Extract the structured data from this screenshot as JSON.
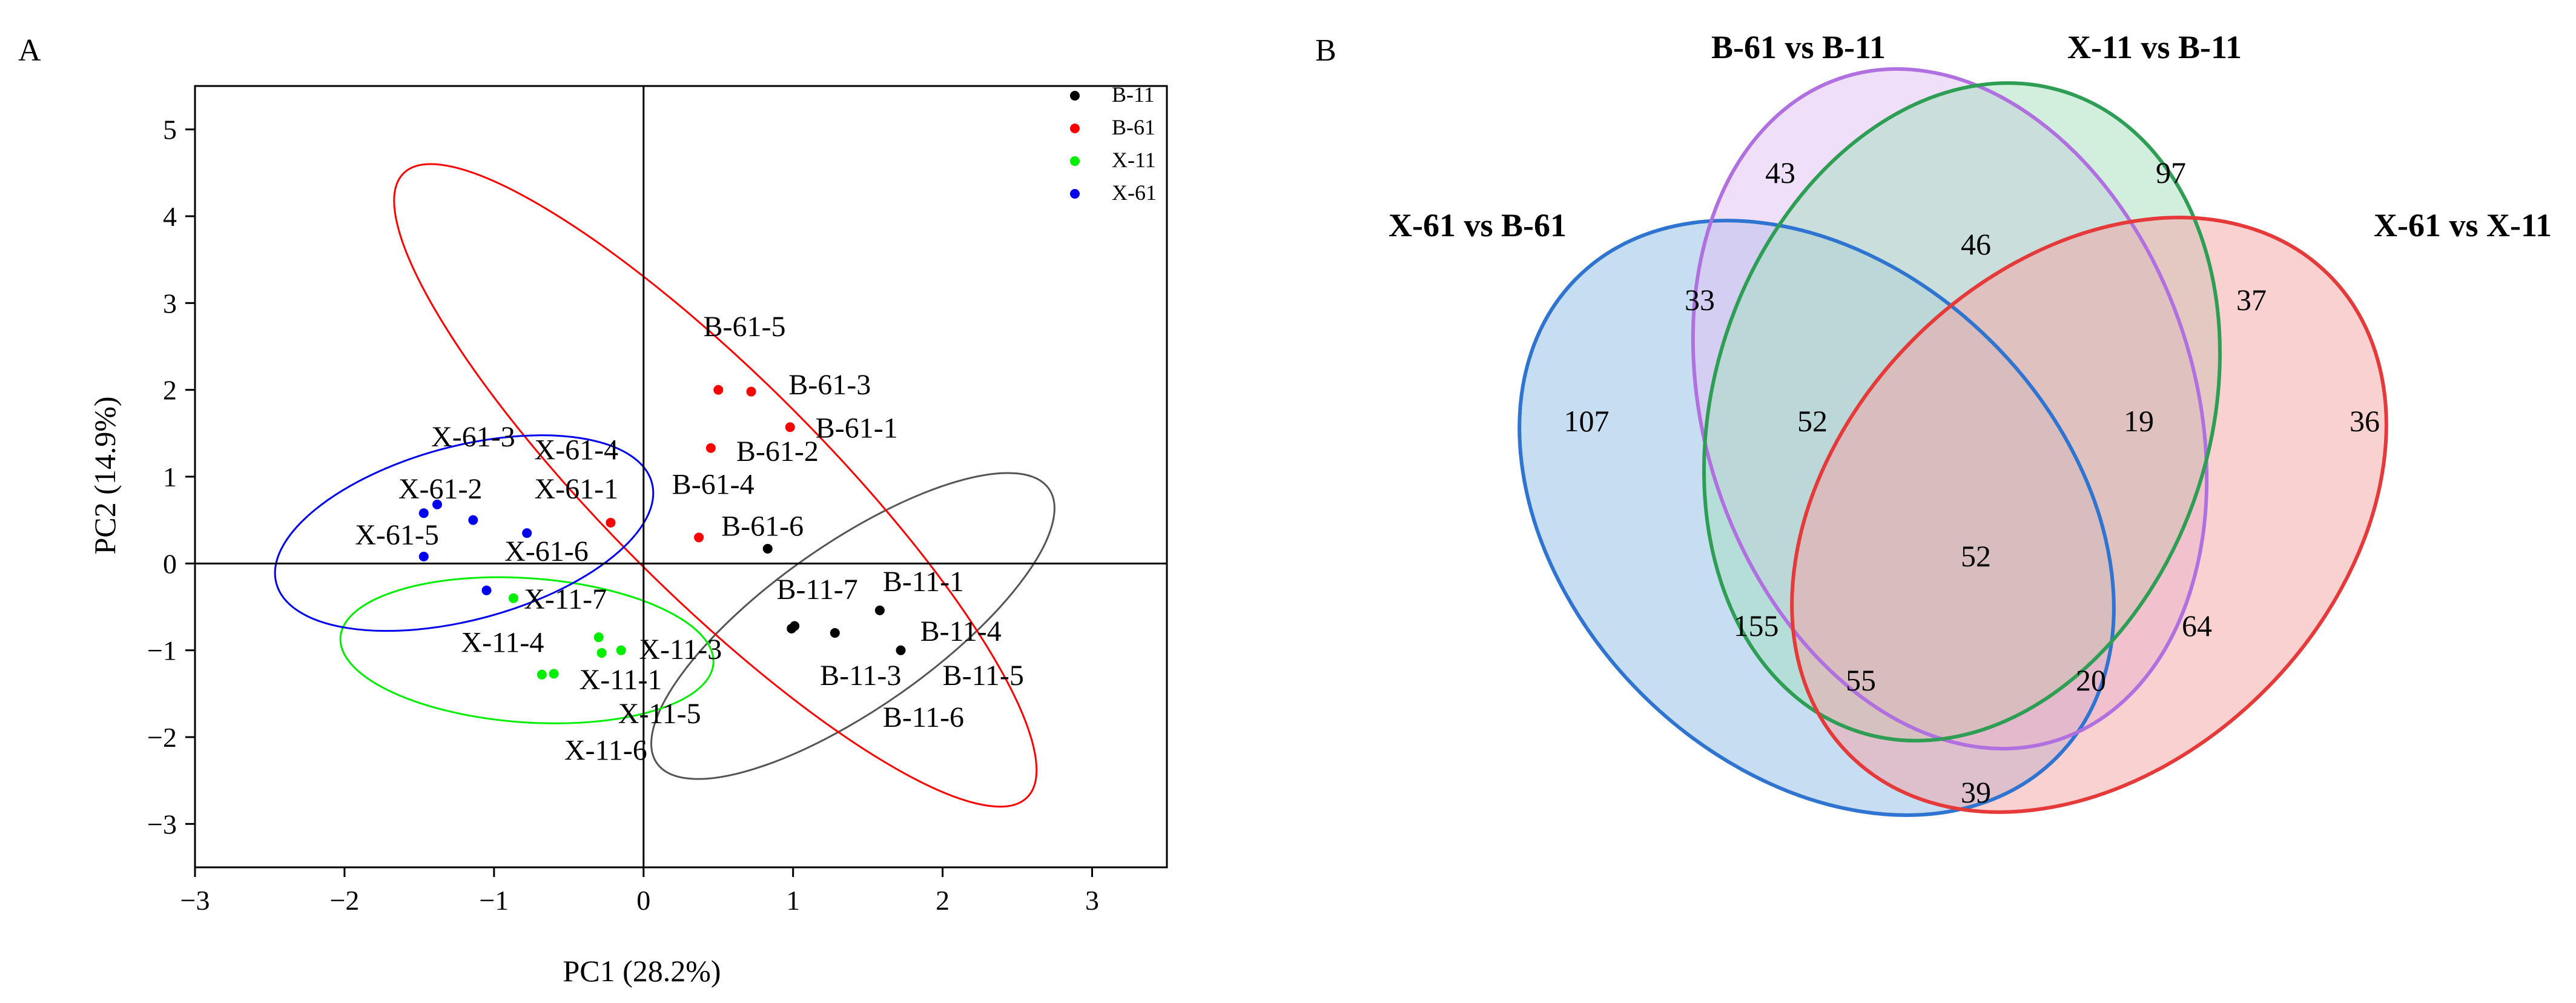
{
  "panels": {
    "a_label": "A",
    "b_label": "B"
  },
  "chart_data": [
    {
      "type": "scatter",
      "xlabel": "PC1 (28.2%)",
      "ylabel": "PC2 (14.9%)",
      "xlim": [
        -3,
        3.5
      ],
      "ylim": [
        -3.5,
        5.5
      ],
      "xticks": [
        -3,
        -2,
        -1,
        0,
        1,
        2,
        3
      ],
      "yticks": [
        -3,
        -2,
        -1,
        0,
        1,
        2,
        3,
        4,
        5
      ],
      "grid": false,
      "legend_position": "top-right",
      "series": [
        {
          "name": "B-11",
          "color": "#000000",
          "points": [
            {
              "x": 0.83,
              "y": 0.17
            },
            {
              "x": 0.99,
              "y": -0.75
            },
            {
              "x": 1.01,
              "y": -0.72
            },
            {
              "x": 1.28,
              "y": -0.8
            },
            {
              "x": 1.58,
              "y": -0.54
            },
            {
              "x": 1.72,
              "y": -1.0
            }
          ],
          "ellipse": {
            "cx": 1.4,
            "cy": -0.72,
            "rx": 1.6,
            "ry": 0.95,
            "angle_deg": -35
          },
          "labels": [
            {
              "text": "B-11-1",
              "x": 1.6,
              "y": -0.32
            },
            {
              "text": "B-11-7",
              "x": 0.89,
              "y": -0.41
            },
            {
              "text": "B-11-4",
              "x": 1.85,
              "y": -0.89
            },
            {
              "text": "B-11-3",
              "x": 1.18,
              "y": -1.4
            },
            {
              "text": "B-11-5",
              "x": 2.0,
              "y": -1.4
            },
            {
              "text": "B-11-6",
              "x": 1.6,
              "y": -1.88
            }
          ]
        },
        {
          "name": "B-61",
          "color": "#ff0000",
          "points": [
            {
              "x": 0.5,
              "y": 2.0
            },
            {
              "x": 0.72,
              "y": 1.98
            },
            {
              "x": 0.98,
              "y": 1.57
            },
            {
              "x": 0.45,
              "y": 1.33
            },
            {
              "x": 0.37,
              "y": 0.3
            },
            {
              "x": -0.22,
              "y": 0.47
            }
          ],
          "ellipse": {
            "cx": 0.48,
            "cy": 0.9,
            "rx": 2.95,
            "ry": 1.25,
            "angle_deg": 45
          },
          "labels": [
            {
              "text": "B-61-5",
              "x": 0.4,
              "y": 2.62
            },
            {
              "text": "B-61-3",
              "x": 0.97,
              "y": 1.95
            },
            {
              "text": "B-61-1",
              "x": 1.15,
              "y": 1.45
            },
            {
              "text": "B-61-2",
              "x": 0.62,
              "y": 1.18
            },
            {
              "text": "B-61-4",
              "x": 0.19,
              "y": 0.8
            },
            {
              "text": "B-61-6",
              "x": 0.52,
              "y": 0.32
            }
          ]
        },
        {
          "name": "X-11",
          "color": "#00ee00",
          "points": [
            {
              "x": -0.87,
              "y": -0.4
            },
            {
              "x": -0.3,
              "y": -0.85
            },
            {
              "x": -0.28,
              "y": -1.03
            },
            {
              "x": -0.15,
              "y": -1.0
            },
            {
              "x": -0.68,
              "y": -1.28
            },
            {
              "x": -0.6,
              "y": -1.27
            }
          ],
          "ellipse": {
            "cx": -0.78,
            "cy": -1.0,
            "rx": 1.25,
            "ry": 0.83,
            "angle_deg": 4
          },
          "labels": [
            {
              "text": "X-11-7",
              "x": -0.8,
              "y": -0.52
            },
            {
              "text": "X-11-4",
              "x": -1.22,
              "y": -1.02
            },
            {
              "text": "X-11-3",
              "x": -0.03,
              "y": -1.1
            },
            {
              "text": "X-11-1",
              "x": -0.43,
              "y": -1.45
            },
            {
              "text": "X-11-5",
              "x": -0.17,
              "y": -1.84
            },
            {
              "text": "X-11-6",
              "x": -0.53,
              "y": -2.26
            }
          ]
        },
        {
          "name": "X-61",
          "color": "#0000ee",
          "points": [
            {
              "x": -1.38,
              "y": 0.68
            },
            {
              "x": -1.47,
              "y": 0.58
            },
            {
              "x": -1.14,
              "y": 0.5
            },
            {
              "x": -0.78,
              "y": 0.35
            },
            {
              "x": -1.47,
              "y": 0.08
            },
            {
              "x": -1.05,
              "y": -0.31
            }
          ],
          "ellipse": {
            "cx": -1.2,
            "cy": 0.35,
            "rx": 1.3,
            "ry": 1.0,
            "angle_deg": -15
          },
          "labels": [
            {
              "text": "X-61-3",
              "x": -1.42,
              "y": 1.35
            },
            {
              "text": "X-61-4",
              "x": -0.73,
              "y": 1.2
            },
            {
              "text": "X-61-2",
              "x": -1.64,
              "y": 0.75
            },
            {
              "text": "X-61-1",
              "x": -0.73,
              "y": 0.75
            },
            {
              "text": "X-61-5",
              "x": -1.93,
              "y": 0.22
            },
            {
              "text": "X-61-6",
              "x": -0.93,
              "y": 0.03
            }
          ]
        }
      ]
    },
    {
      "type": "venn",
      "sets": [
        {
          "name": "X-61 vs B-61",
          "color": "#2f74d0",
          "fill": "#8dbbe6"
        },
        {
          "name": "B-61 vs B-11",
          "color": "#b070e0",
          "fill": "#dfbff2"
        },
        {
          "name": "X-11 vs B-11",
          "color": "#2f9e55",
          "fill": "#a6e0bd"
        },
        {
          "name": "X-61 vs X-11",
          "color": "#e63939",
          "fill": "#f4a4a4"
        }
      ],
      "regions": [
        {
          "sets": [
            "B-61 vs B-11"
          ],
          "value": 43
        },
        {
          "sets": [
            "X-11 vs B-11"
          ],
          "value": 97
        },
        {
          "sets": [
            "X-61 vs B-61"
          ],
          "value": 107
        },
        {
          "sets": [
            "X-61 vs X-11"
          ],
          "value": 36
        },
        {
          "sets": [
            "B-61 vs B-11",
            "X-11 vs B-11"
          ],
          "value": 46
        },
        {
          "sets": [
            "X-61 vs B-61",
            "B-61 vs B-11"
          ],
          "value": 33
        },
        {
          "sets": [
            "X-11 vs B-11",
            "X-61 vs X-11"
          ],
          "value": 37
        },
        {
          "sets": [
            "X-61 vs B-61",
            "B-61 vs B-11",
            "X-11 vs B-11"
          ],
          "value": 52
        },
        {
          "sets": [
            "B-61 vs B-11",
            "X-11 vs B-11",
            "X-61 vs X-11"
          ],
          "value": 19
        },
        {
          "sets": [
            "X-61 vs B-61",
            "B-61 vs B-11",
            "X-11 vs B-11",
            "X-61 vs X-11"
          ],
          "value": 52
        },
        {
          "sets": [
            "X-61 vs B-61",
            "X-11 vs B-11"
          ],
          "value": 155
        },
        {
          "sets": [
            "B-61 vs B-11",
            "X-61 vs X-11"
          ],
          "value": 64
        },
        {
          "sets": [
            "X-61 vs B-61",
            "X-11 vs B-11",
            "X-61 vs X-11"
          ],
          "value": 55
        },
        {
          "sets": [
            "X-61 vs B-61",
            "B-61 vs B-11",
            "X-61 vs X-11"
          ],
          "value": 20
        },
        {
          "sets": [
            "X-61 vs B-61",
            "X-61 vs X-11"
          ],
          "value": 39
        }
      ]
    }
  ]
}
